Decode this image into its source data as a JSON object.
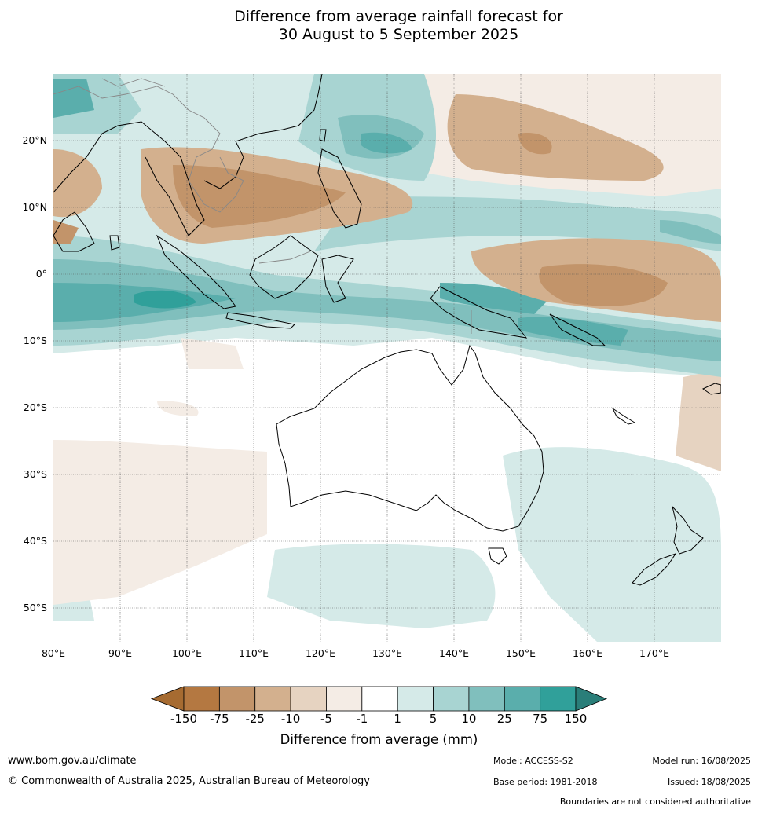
{
  "title": {
    "line1": "Difference from average rainfall forecast for",
    "line2": "30 August to 5 September 2025"
  },
  "map": {
    "lat_labels": [
      "20°N",
      "10°N",
      "0°",
      "10°S",
      "20°S",
      "30°S",
      "40°S",
      "50°S"
    ],
    "lon_labels": [
      "80°E",
      "90°E",
      "100°E",
      "110°E",
      "120°E",
      "130°E",
      "140°E",
      "150°E",
      "160°E",
      "170°E"
    ],
    "lat_range": [
      -55,
      30
    ],
    "lon_range": [
      80,
      180
    ]
  },
  "colorbar": {
    "tick_labels": [
      "-150",
      "-75",
      "-25",
      "-10",
      "-5",
      "-1",
      "1",
      "5",
      "10",
      "25",
      "75",
      "150"
    ],
    "colors": [
      "#a66b31",
      "#b47841",
      "#c2946a",
      "#d3b08e",
      "#e6d3c1",
      "#f4ece5",
      "#ffffff",
      "#d5eae8",
      "#a8d4d2",
      "#80bfbd",
      "#5aaeac",
      "#30a09a",
      "#2a7e79"
    ],
    "title": "Difference from average (mm)"
  },
  "footer": {
    "website": "www.bom.gov.au/climate",
    "copyright": "© Commonwealth of Australia 2025, Australian Bureau of Meteorology",
    "model": "Model: ACCESS-S2",
    "base_period": "Base period: 1981-2018",
    "model_run": "Model run: 16/08/2025",
    "issued": "Issued: 18/08/2025",
    "disclaimer": "Boundaries are not considered authoritative"
  }
}
